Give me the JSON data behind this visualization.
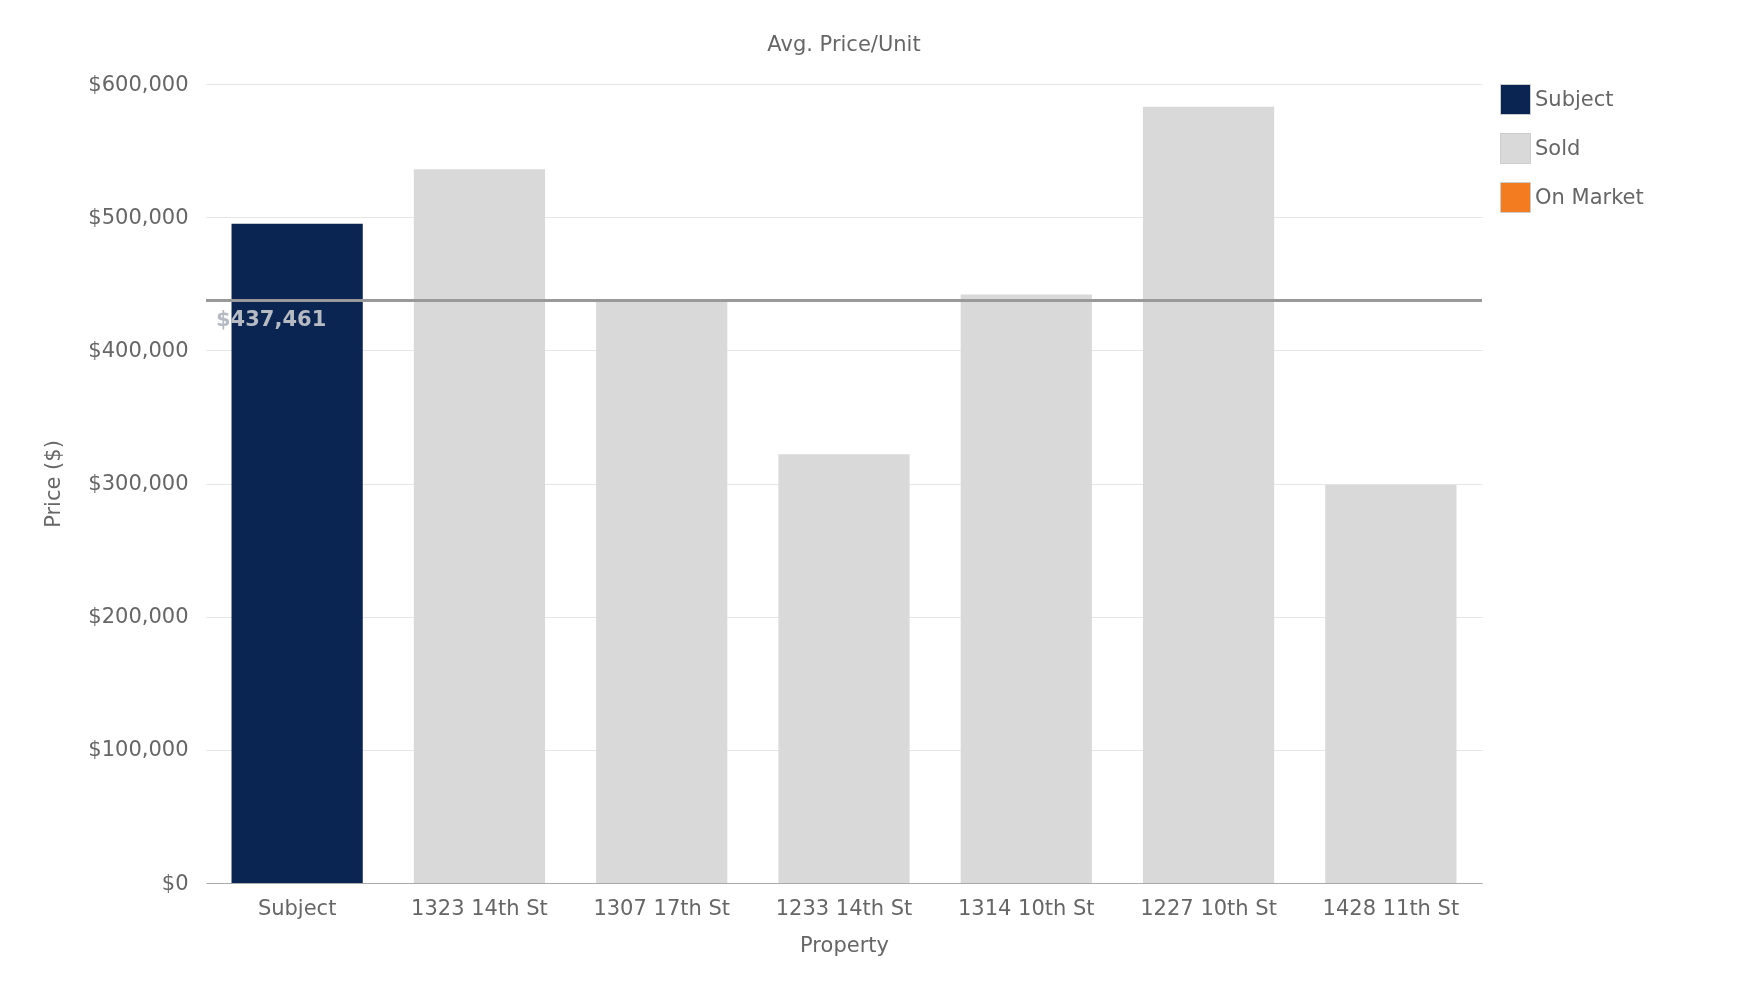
{
  "chart_data": {
    "type": "bar",
    "title": "Avg. Price/Unit",
    "xlabel": "Property",
    "ylabel": "Price ($)",
    "categories": [
      "Subject",
      "1323 14th St",
      "1307 17th St",
      "1233 14th St",
      "1314 10th St",
      "1227 10th St",
      "1428 11th St"
    ],
    "series": [
      {
        "name": "Subject",
        "color": "#0a2552",
        "values": [
          495000,
          null,
          null,
          null,
          null,
          null,
          null
        ]
      },
      {
        "name": "Sold",
        "color": "#d9d9d9",
        "values": [
          null,
          536000,
          438000,
          322000,
          442000,
          583000,
          299000
        ]
      },
      {
        "name": "On Market",
        "color": "#f47c20",
        "values": [
          null,
          null,
          null,
          null,
          null,
          null,
          null
        ]
      }
    ],
    "ylim": [
      0,
      600000
    ],
    "yticks": [
      {
        "value": 0,
        "label": "$0"
      },
      {
        "value": 100000,
        "label": "$100,000"
      },
      {
        "value": 200000,
        "label": "$200,000"
      },
      {
        "value": 300000,
        "label": "$300,000"
      },
      {
        "value": 400000,
        "label": "$400,000"
      },
      {
        "value": 500000,
        "label": "$500,000"
      },
      {
        "value": 600000,
        "label": "$600,000"
      }
    ],
    "ref_lines": [
      {
        "axis": "y",
        "value": 437461,
        "label": "$437,461",
        "color": "#999999"
      }
    ],
    "grid": "y",
    "legend": "top right"
  }
}
